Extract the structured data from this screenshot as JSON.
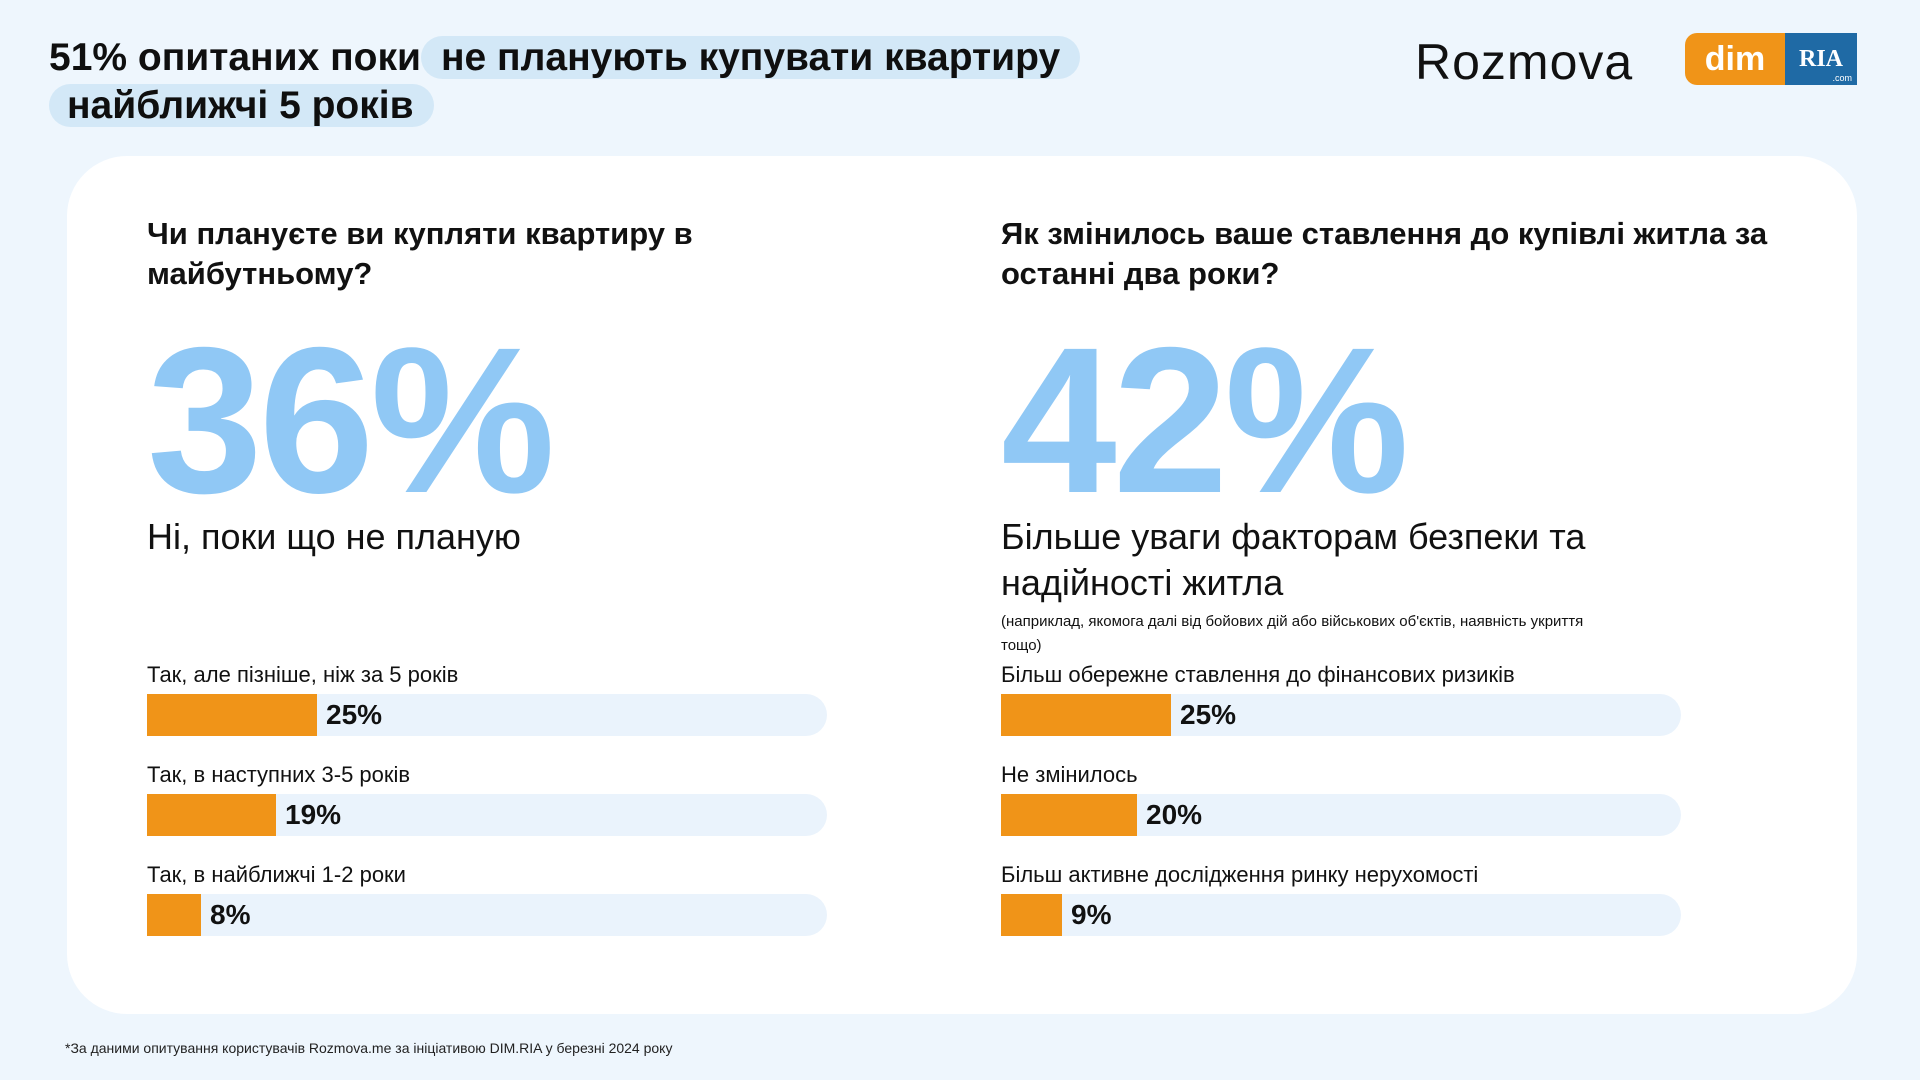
{
  "header": {
    "title_line1_plain": "51% опитаних поки",
    "title_line1_highlight": "не планують купувати квартиру",
    "title_line2_highlight": "найближчі 5 років",
    "brand_rozmova": "Rozmova",
    "brand_dim": "dim",
    "brand_ria": "RIA",
    "brand_ria_com": ".com"
  },
  "left": {
    "question": "Чи плануєте ви купляти квартиру в майбутньому?",
    "big_value": "36%",
    "big_label": "Ні, поки що не планую"
  },
  "right": {
    "question": "Як змінилось ваше ставлення до купівлі житла за останні два роки?",
    "big_value": "42%",
    "big_label": "Більше уваги факторам безпеки та надійності житла",
    "note": "(наприклад, якомога далі від бойових дій або військових об'єктів, наявність укриття тощо)"
  },
  "chart_data": [
    {
      "type": "bar",
      "orientation": "horizontal",
      "title": "Чи плануєте ви купляти квартиру в майбутньому?",
      "categories": [
        "Так, але пізніше, ніж за 5 років",
        "Так, в наступних 3-5 років",
        "Так, в найближчі 1-2 роки"
      ],
      "values": [
        25,
        19,
        8
      ],
      "value_labels": [
        "25%",
        "19%",
        "8%"
      ],
      "xlim": [
        0,
        100
      ]
    },
    {
      "type": "bar",
      "orientation": "horizontal",
      "title": "Як змінилось ваше ставлення до купівлі житла за останні два роки?",
      "categories": [
        "Більш обережне ставлення до фінансових ризиків",
        "Не змінилось",
        "Більш активне дослідження ринку нерухомості"
      ],
      "values": [
        25,
        20,
        9
      ],
      "value_labels": [
        "25%",
        "20%",
        "9%"
      ],
      "xlim": [
        0,
        100
      ]
    }
  ],
  "colors": {
    "bar_fill": "#f09418",
    "bar_track": "#eaf3fc",
    "big_number": "#90c8f5",
    "highlight": "#d3e8f7"
  },
  "footnote": "*За даними опитування користувачів Rozmova.me за ініціативою DIM.RIA у березні 2024 року"
}
